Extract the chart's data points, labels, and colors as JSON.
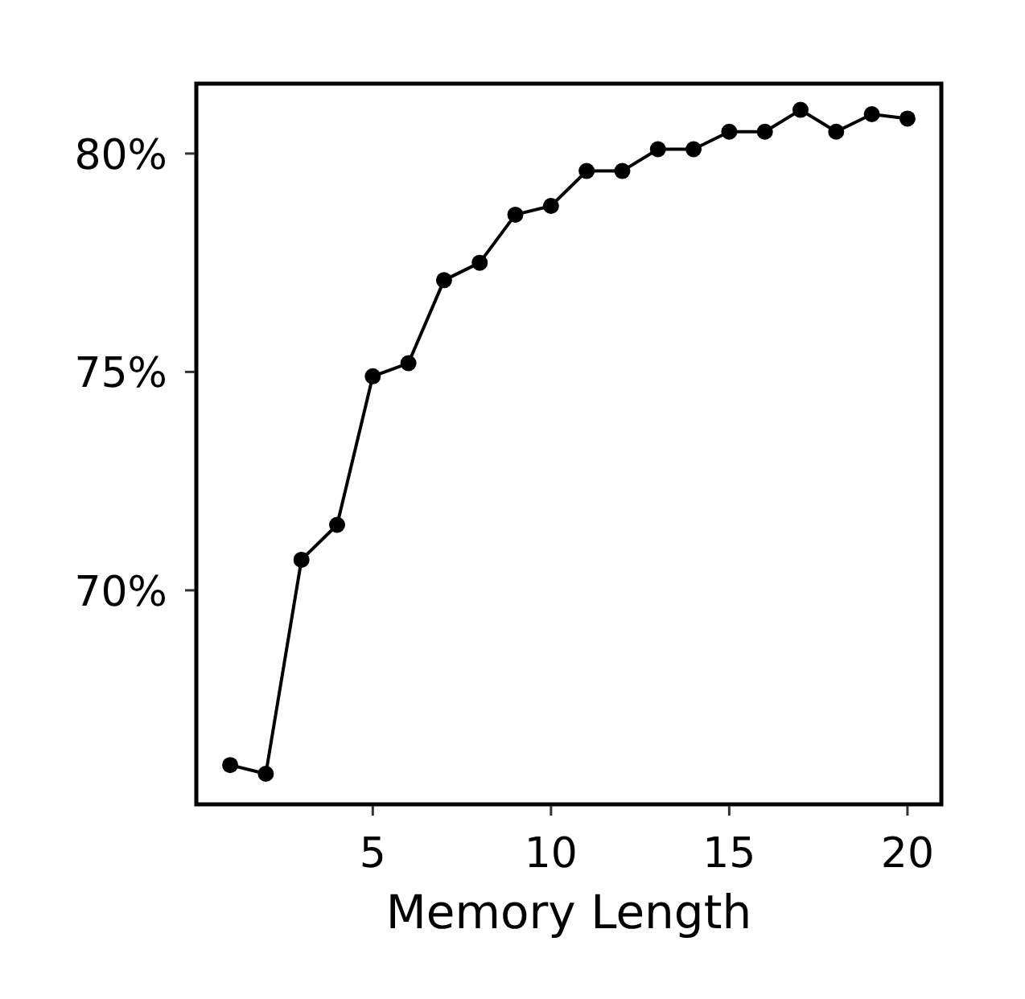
{
  "chart_data": {
    "type": "line",
    "xlabel": "Memory Length",
    "x": [
      1,
      2,
      3,
      4,
      5,
      6,
      7,
      8,
      9,
      10,
      11,
      12,
      13,
      14,
      15,
      16,
      17,
      18,
      19,
      20
    ],
    "series": [
      {
        "color": "#000000",
        "values": [
          66.0,
          65.8,
          70.7,
          71.5,
          74.9,
          75.2,
          77.1,
          77.5,
          78.6,
          78.8,
          79.6,
          79.6,
          80.1,
          80.1,
          80.5,
          80.5,
          81.0,
          80.5,
          80.9,
          80.8
        ]
      }
    ],
    "xlim": [
      0.05,
      20.95
    ],
    "xticks": [
      5,
      10,
      15,
      20
    ],
    "ylim": [
      65.1,
      81.6
    ],
    "yticks": [
      {
        "value": 70,
        "label": "70%"
      },
      {
        "value": 75,
        "label": "75%"
      },
      {
        "value": 80,
        "label": "80%"
      }
    ],
    "marker": "circle",
    "line_style": "solid"
  }
}
